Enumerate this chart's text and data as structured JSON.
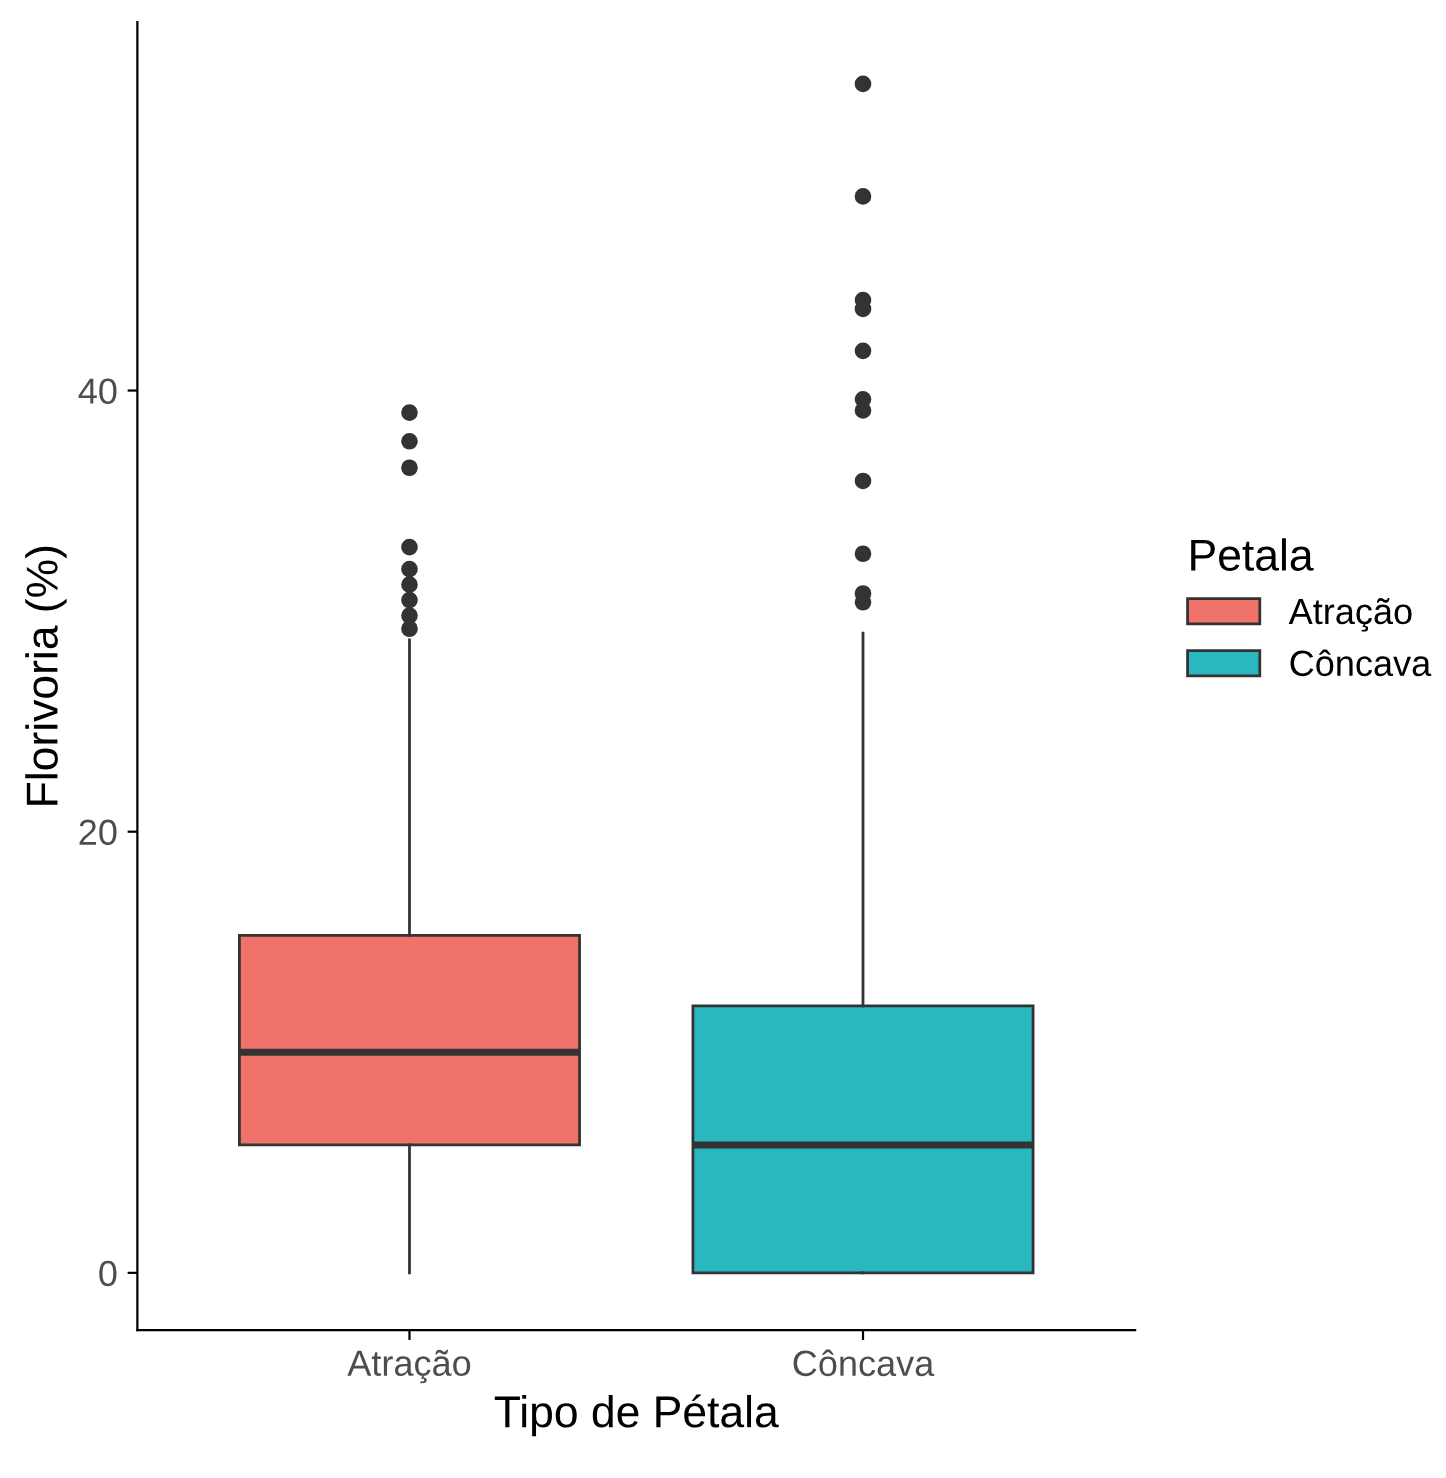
{
  "chart_data": {
    "type": "box",
    "xlabel": "Tipo de Pétala",
    "ylabel": "Florivoria (%)",
    "legend_title": "Petala",
    "categories": [
      "Atração",
      "Côncava"
    ],
    "ylim": [
      -2.6,
      56.7
    ],
    "yticks": [
      0,
      20,
      40
    ],
    "grid": false,
    "legend": "right",
    "series": [
      {
        "name": "Atração",
        "color": "#ef736b",
        "boxes": [
          {
            "low": 0,
            "q1": 5.8,
            "median": 10,
            "q3": 15.3,
            "high": 28.7,
            "outliers": [
              39.0,
              37.7,
              36.5,
              32.9,
              31.9,
              31.2,
              30.5,
              29.8,
              29.2
            ]
          },
          null
        ]
      },
      {
        "name": "Côncava",
        "color": "#29b8c0",
        "boxes": [
          null,
          {
            "low": 0,
            "q1": 0,
            "median": 5.8,
            "q3": 12.1,
            "high": 29.0,
            "outliers": [
              53.9,
              48.8,
              44.1,
              43.7,
              41.8,
              39.6,
              39.1,
              35.9,
              32.6,
              30.8,
              30.4
            ]
          }
        ]
      }
    ]
  }
}
